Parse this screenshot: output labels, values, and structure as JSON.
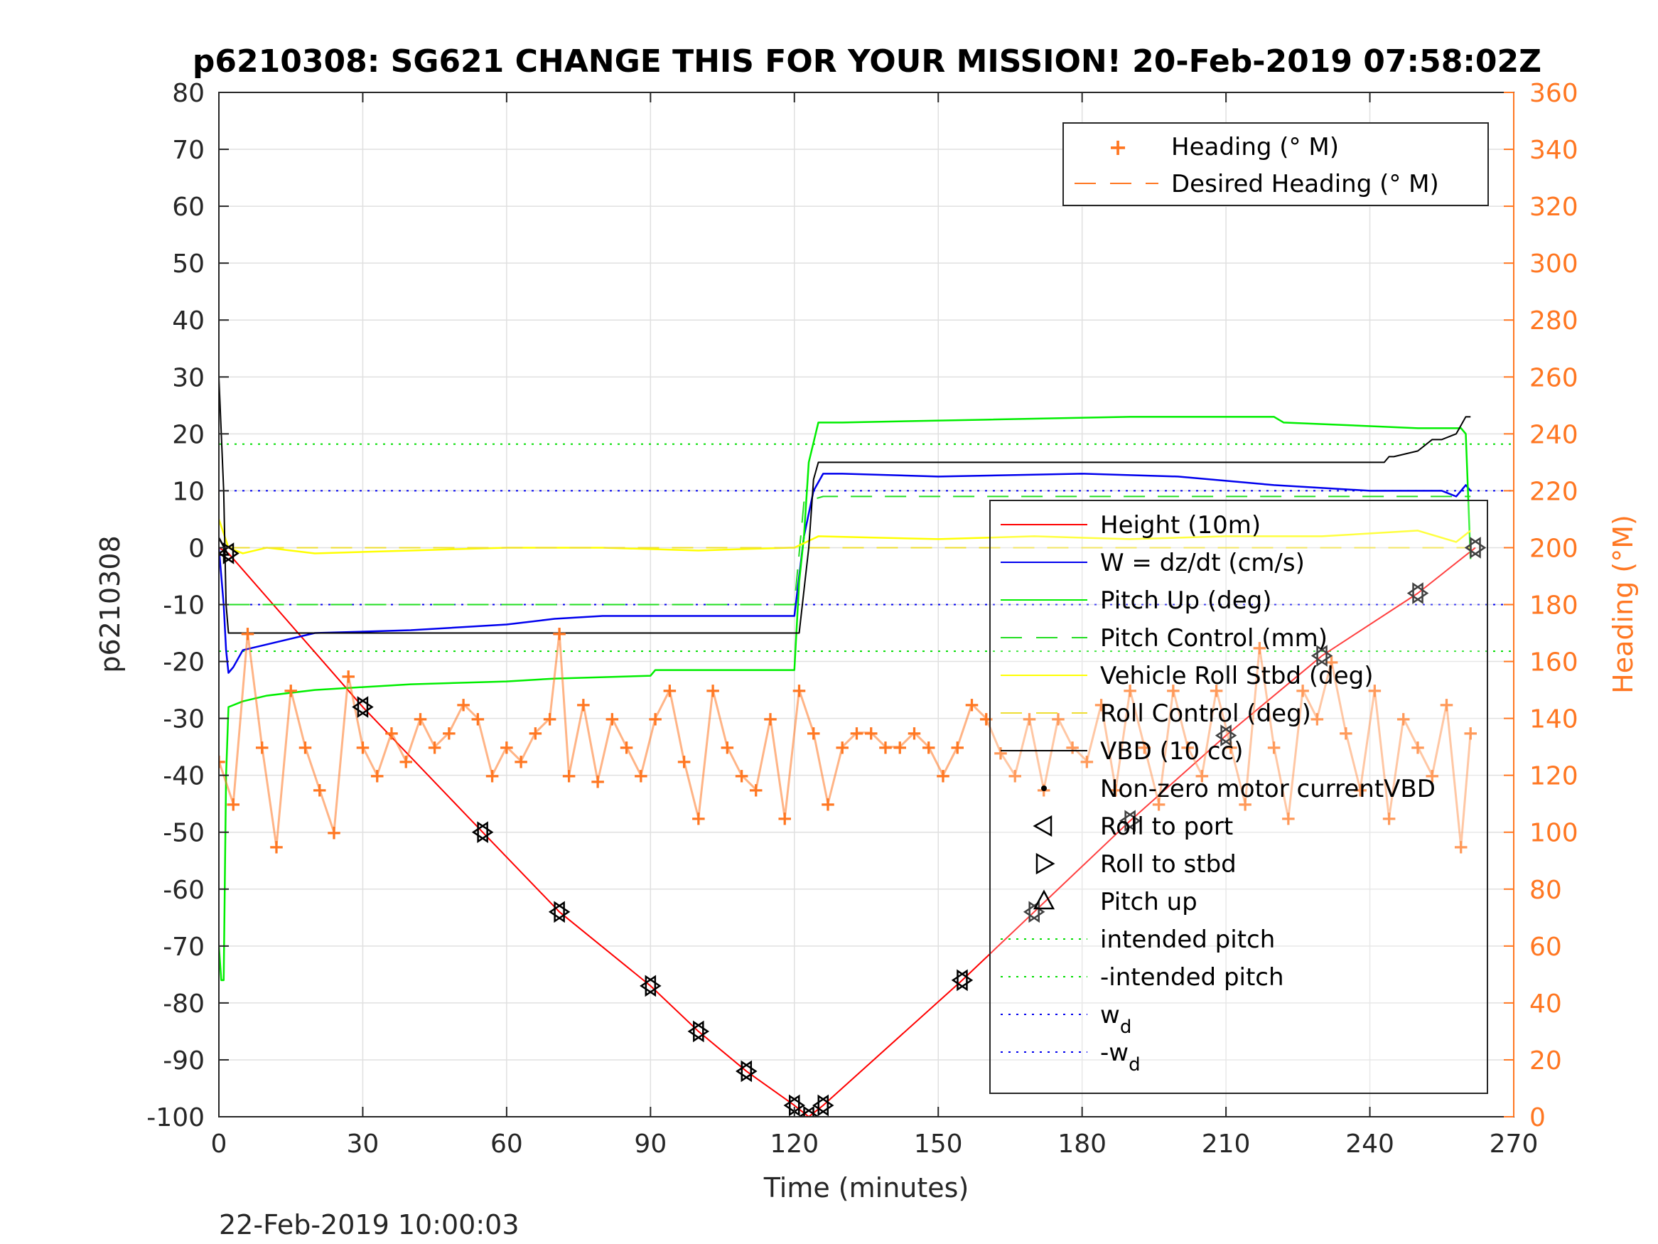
{
  "chart_data": {
    "type": "line",
    "title": "p6210308: SG621 CHANGE THIS FOR YOUR MISSION! 20-Feb-2019 07:58:02Z",
    "xlabel": "Time (minutes)",
    "ylabel": "p6210308",
    "y2label": "Heading (°M)",
    "xlim": [
      0,
      270
    ],
    "ylim": [
      -100,
      80
    ],
    "y2lim": [
      0,
      360
    ],
    "xticks": [
      0,
      30,
      60,
      90,
      120,
      150,
      180,
      210,
      240,
      270
    ],
    "yticks": [
      80,
      70,
      60,
      50,
      40,
      30,
      20,
      10,
      0,
      -10,
      -20,
      -30,
      -40,
      -50,
      -60,
      -70,
      -80,
      -90,
      -100
    ],
    "y2ticks": [
      360,
      340,
      320,
      300,
      280,
      260,
      240,
      220,
      200,
      180,
      160,
      140,
      120,
      100,
      80,
      60,
      40,
      20,
      0
    ],
    "grid": true,
    "footer": "22-Feb-2019 10:00:03",
    "colors": {
      "height": "#ff0000",
      "w": "#0000ee",
      "pitch": "#00ee00",
      "roll": "#ffff00",
      "vbd": "#000000",
      "heading": "#ff7722",
      "axis_right": "#ff7722"
    },
    "legend_top": {
      "placement": "top-right",
      "entries": [
        "Heading (° M)",
        "Desired Heading (° M)"
      ]
    },
    "legend_main": {
      "placement": "center-right",
      "entries": [
        {
          "label": "Height (10m)",
          "style": "solid-red"
        },
        {
          "label": "W = dz/dt (cm/s)",
          "style": "solid-blue"
        },
        {
          "label": "Pitch Up (deg)",
          "style": "solid-green"
        },
        {
          "label": "Pitch Control (mm)",
          "style": "dashed-green"
        },
        {
          "label": "Vehicle Roll Stbd (deg)",
          "style": "solid-yellow"
        },
        {
          "label": "Roll Control (deg)",
          "style": "dashed-yellow"
        },
        {
          "label": "VBD (10 cc)",
          "style": "solid-black"
        },
        {
          "label": "Non-zero motor currentVBD",
          "style": "dot-black"
        },
        {
          "label": "Roll to port",
          "style": "triangle-left"
        },
        {
          "label": "Roll to stbd",
          "style": "triangle-right"
        },
        {
          "label": "Pitch up",
          "style": "triangle-up"
        },
        {
          "label": "intended pitch",
          "style": "dotted-green"
        },
        {
          "label": "-intended pitch",
          "style": "dotted-green"
        },
        {
          "label": "w",
          "sub": "d",
          "style": "dotted-blue"
        },
        {
          "label": "-w",
          "sub": "d",
          "style": "dotted-blue"
        }
      ]
    },
    "reference_lines": {
      "intended_pitch": 18.2,
      "neg_intended_pitch": -18.2,
      "w_d": 10,
      "neg_w_d": -10
    },
    "series": [
      {
        "name": "Height (10m)",
        "x": [
          0,
          2,
          30,
          55,
          71,
          90,
          100,
          110,
          120,
          123,
          126,
          155,
          170,
          190,
          210,
          230,
          250,
          262
        ],
        "y": [
          0,
          -1,
          -28,
          -50,
          -64,
          -77,
          -85,
          -92,
          -98,
          -100,
          -98,
          -76,
          -64,
          -48,
          -33,
          -19,
          -8,
          0
        ]
      },
      {
        "name": "W = dz/dt (cm/s)",
        "x": [
          0,
          1,
          1.5,
          2,
          3,
          5,
          10,
          20,
          40,
          60,
          70,
          80,
          100,
          120,
          121,
          122,
          124,
          126,
          130,
          150,
          180,
          200,
          220,
          240,
          255,
          258,
          260,
          261
        ],
        "y": [
          0,
          -10,
          -18,
          -22,
          -21,
          -18,
          -17,
          -15,
          -14.5,
          -13.5,
          -12.5,
          -12,
          -12,
          -12,
          -5,
          2,
          10,
          13,
          13,
          12.5,
          13,
          12.5,
          11,
          10,
          10,
          9,
          11,
          10
        ]
      },
      {
        "name": "Pitch Up (deg)",
        "x": [
          0,
          0.5,
          1,
          1.5,
          2,
          5,
          10,
          20,
          40,
          60,
          70,
          90,
          91,
          110,
          120,
          121,
          122,
          123,
          125,
          130,
          160,
          190,
          220,
          222,
          250,
          259,
          260,
          261
        ],
        "y": [
          -70,
          -76,
          -76,
          -40,
          -28,
          -27,
          -26,
          -25,
          -24,
          -23.5,
          -23,
          -22.5,
          -21.5,
          -21.5,
          -21.5,
          -6,
          2,
          15,
          22,
          22,
          22.5,
          23,
          23,
          22,
          21,
          21,
          20,
          -2
        ]
      },
      {
        "name": "Pitch Control (mm)",
        "x": [
          2,
          120,
          122,
          126,
          261
        ],
        "y": [
          -10,
          -10,
          8,
          9,
          9
        ]
      },
      {
        "name": "Vehicle Roll Stbd (deg)",
        "x": [
          0,
          2,
          5,
          10,
          20,
          40,
          60,
          80,
          100,
          119,
          120,
          125,
          150,
          170,
          190,
          210,
          230,
          250,
          258,
          261
        ],
        "y": [
          5,
          0,
          -1,
          0,
          -1,
          -0.5,
          0,
          0,
          -0.5,
          0,
          0,
          2,
          1.5,
          2,
          1.5,
          2,
          2,
          3,
          1,
          3
        ]
      },
      {
        "name": "Roll Control (deg)",
        "x": [
          2,
          120,
          121,
          261
        ],
        "y": [
          0,
          0,
          0,
          0
        ]
      },
      {
        "name": "VBD (10 cc)",
        "x": [
          0,
          1,
          1.5,
          2,
          120,
          121,
          123,
          124,
          125,
          130,
          150,
          175,
          200,
          220,
          243,
          244,
          245,
          250,
          253,
          255,
          258,
          260,
          261
        ],
        "y": [
          30,
          10,
          -10,
          -15,
          -15,
          -15,
          0,
          12,
          15,
          15,
          15,
          15,
          15,
          15,
          15,
          16,
          16,
          17,
          19,
          19,
          20,
          23,
          23
        ]
      },
      {
        "name": "Heading (° M)",
        "axis": "right",
        "x": [
          0,
          3,
          6,
          9,
          12,
          15,
          18,
          21,
          24,
          27,
          30,
          33,
          36,
          39,
          42,
          45,
          48,
          51,
          54,
          57,
          60,
          63,
          66,
          69,
          71,
          73,
          76,
          79,
          82,
          85,
          88,
          91,
          94,
          97,
          100,
          103,
          106,
          109,
          112,
          115,
          118,
          121,
          124,
          127,
          130,
          133,
          136,
          139,
          142,
          145,
          148,
          151,
          154,
          157,
          160,
          163,
          166,
          169,
          172,
          175,
          178,
          181,
          184,
          187,
          190,
          193,
          196,
          199,
          202,
          205,
          208,
          211,
          214,
          217,
          220,
          223,
          226,
          229,
          232,
          235,
          238,
          241,
          244,
          247,
          250,
          253,
          256,
          259,
          261
        ],
        "y": [
          125,
          110,
          170,
          130,
          95,
          150,
          130,
          115,
          100,
          155,
          130,
          120,
          135,
          125,
          140,
          130,
          135,
          145,
          140,
          120,
          130,
          125,
          135,
          140,
          170,
          120,
          145,
          118,
          140,
          130,
          120,
          140,
          150,
          125,
          105,
          150,
          130,
          120,
          115,
          140,
          105,
          150,
          135,
          110,
          130,
          135,
          135,
          130,
          130,
          135,
          130,
          120,
          130,
          145,
          140,
          128,
          120,
          140,
          115,
          140,
          130,
          125,
          145,
          115,
          150,
          130,
          110,
          150,
          130,
          120,
          150,
          130,
          110,
          165,
          130,
          105,
          150,
          140,
          160,
          135,
          115,
          150,
          105,
          140,
          130,
          120,
          145,
          95,
          135
        ]
      }
    ]
  }
}
